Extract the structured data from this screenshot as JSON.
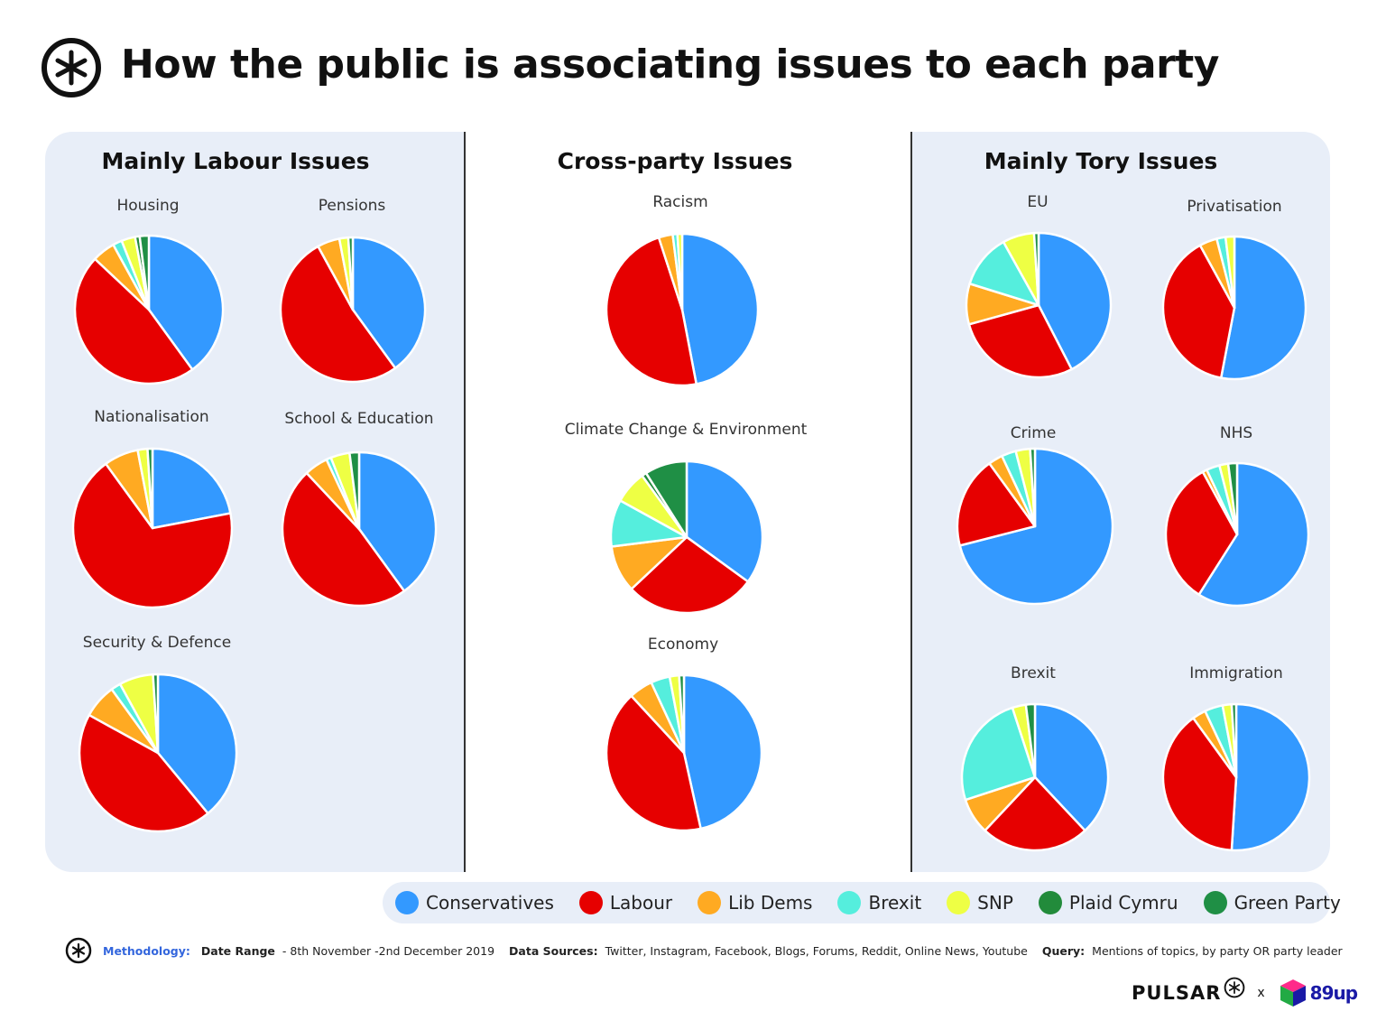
{
  "title": "How the public is associating issues to each party",
  "colors": {
    "Conservatives": "#3399ff",
    "Labour": "#e60000",
    "Lib Dems": "#ffaa22",
    "Brexit": "#55eedd",
    "SNP": "#eeff44",
    "Plaid Cymru": "#228b3b",
    "Green Party": "#1f8f45"
  },
  "sections": {
    "left": "Mainly Labour Issues",
    "middle": "Cross-party Issues",
    "right": "Mainly Tory Issues"
  },
  "legend": [
    "Conservatives",
    "Labour",
    "Lib Dems",
    "Brexit",
    "SNP",
    "Plaid Cymru",
    "Green Party"
  ],
  "chart_data": [
    {
      "type": "pie",
      "title": "Housing",
      "labels": [
        "Conservatives",
        "Labour",
        "Lib Dems",
        "Brexit",
        "SNP",
        "Plaid Cymru",
        "Green Party"
      ],
      "values": [
        40,
        47,
        5,
        2,
        3,
        1,
        2
      ]
    },
    {
      "type": "pie",
      "title": "Pensions",
      "labels": [
        "Conservatives",
        "Labour",
        "Lib Dems",
        "Brexit",
        "SNP",
        "Plaid Cymru",
        "Green Party"
      ],
      "values": [
        40,
        52,
        5,
        0,
        2,
        0,
        1
      ]
    },
    {
      "type": "pie",
      "title": "Nationalisation",
      "labels": [
        "Conservatives",
        "Labour",
        "Lib Dems",
        "Brexit",
        "SNP",
        "Plaid Cymru",
        "Green Party"
      ],
      "values": [
        22,
        68,
        7,
        0,
        2,
        0,
        1
      ]
    },
    {
      "type": "pie",
      "title": "School & Education",
      "labels": [
        "Conservatives",
        "Labour",
        "Lib Dems",
        "Brexit",
        "SNP",
        "Plaid Cymru",
        "Green Party"
      ],
      "values": [
        40,
        48,
        5,
        1,
        4,
        0,
        2
      ]
    },
    {
      "type": "pie",
      "title": "Security & Defence",
      "labels": [
        "Conservatives",
        "Labour",
        "Lib Dems",
        "Brexit",
        "SNP",
        "Plaid Cymru",
        "Green Party"
      ],
      "values": [
        39,
        44,
        7,
        2,
        7,
        0,
        1
      ]
    },
    {
      "type": "pie",
      "title": "Racism",
      "labels": [
        "Conservatives",
        "Labour",
        "Lib Dems",
        "Brexit",
        "SNP",
        "Plaid Cymru",
        "Green Party"
      ],
      "values": [
        47,
        48,
        3,
        1,
        1,
        0,
        0
      ]
    },
    {
      "type": "pie",
      "title": "Climate Change & Environment",
      "labels": [
        "Conservatives",
        "Labour",
        "Lib Dems",
        "Brexit",
        "SNP",
        "Plaid Cymru",
        "Green Party"
      ],
      "values": [
        35,
        28,
        10,
        10,
        7,
        1,
        9
      ]
    },
    {
      "type": "pie",
      "title": "Economy",
      "labels": [
        "Conservatives",
        "Labour",
        "Lib Dems",
        "Brexit",
        "SNP",
        "Plaid Cymru",
        "Green Party"
      ],
      "values": [
        47,
        42,
        5,
        4,
        2,
        0,
        1
      ]
    },
    {
      "type": "pie",
      "title": "EU",
      "labels": [
        "Conservatives",
        "Labour",
        "Lib Dems",
        "Brexit",
        "SNP",
        "Plaid Cymru",
        "Green Party"
      ],
      "values": [
        42,
        28,
        9,
        12,
        7,
        0,
        1
      ]
    },
    {
      "type": "pie",
      "title": "Privatisation",
      "labels": [
        "Conservatives",
        "Labour",
        "Lib Dems",
        "Brexit",
        "SNP",
        "Plaid Cymru",
        "Green Party"
      ],
      "values": [
        53,
        39,
        4,
        2,
        2,
        0,
        0
      ]
    },
    {
      "type": "pie",
      "title": "Crime",
      "labels": [
        "Conservatives",
        "Labour",
        "Lib Dems",
        "Brexit",
        "SNP",
        "Plaid Cymru",
        "Green Party"
      ],
      "values": [
        71,
        19,
        3,
        3,
        3,
        0,
        1
      ]
    },
    {
      "type": "pie",
      "title": "NHS",
      "labels": [
        "Conservatives",
        "Labour",
        "Lib Dems",
        "Brexit",
        "SNP",
        "Plaid Cymru",
        "Green Party"
      ],
      "values": [
        59,
        33,
        1,
        3,
        2,
        0,
        2
      ]
    },
    {
      "type": "pie",
      "title": "Brexit",
      "labels": [
        "Conservatives",
        "Labour",
        "Lib Dems",
        "Brexit",
        "SNP",
        "Plaid Cymru",
        "Green Party"
      ],
      "values": [
        38,
        24,
        8,
        25,
        3,
        0,
        2
      ]
    },
    {
      "type": "pie",
      "title": "Immigration",
      "labels": [
        "Conservatives",
        "Labour",
        "Lib Dems",
        "Brexit",
        "SNP",
        "Plaid Cymru",
        "Green Party"
      ],
      "values": [
        51,
        39,
        3,
        4,
        2,
        0,
        1
      ]
    }
  ],
  "footer": {
    "methodology_label": "Methodology:",
    "date_label": "Date Range",
    "date_value": "- 8th November -2nd December 2019",
    "sources_label": "Data Sources:",
    "sources_value": "Twitter, Instagram, Facebook, Blogs, Forums, Reddit, Online News, Youtube",
    "query_label": "Query:",
    "query_value": "Mentions of topics, by party OR party leader"
  },
  "brand": {
    "pulsar": "PULSAR",
    "x": "x",
    "partner": "89up"
  }
}
